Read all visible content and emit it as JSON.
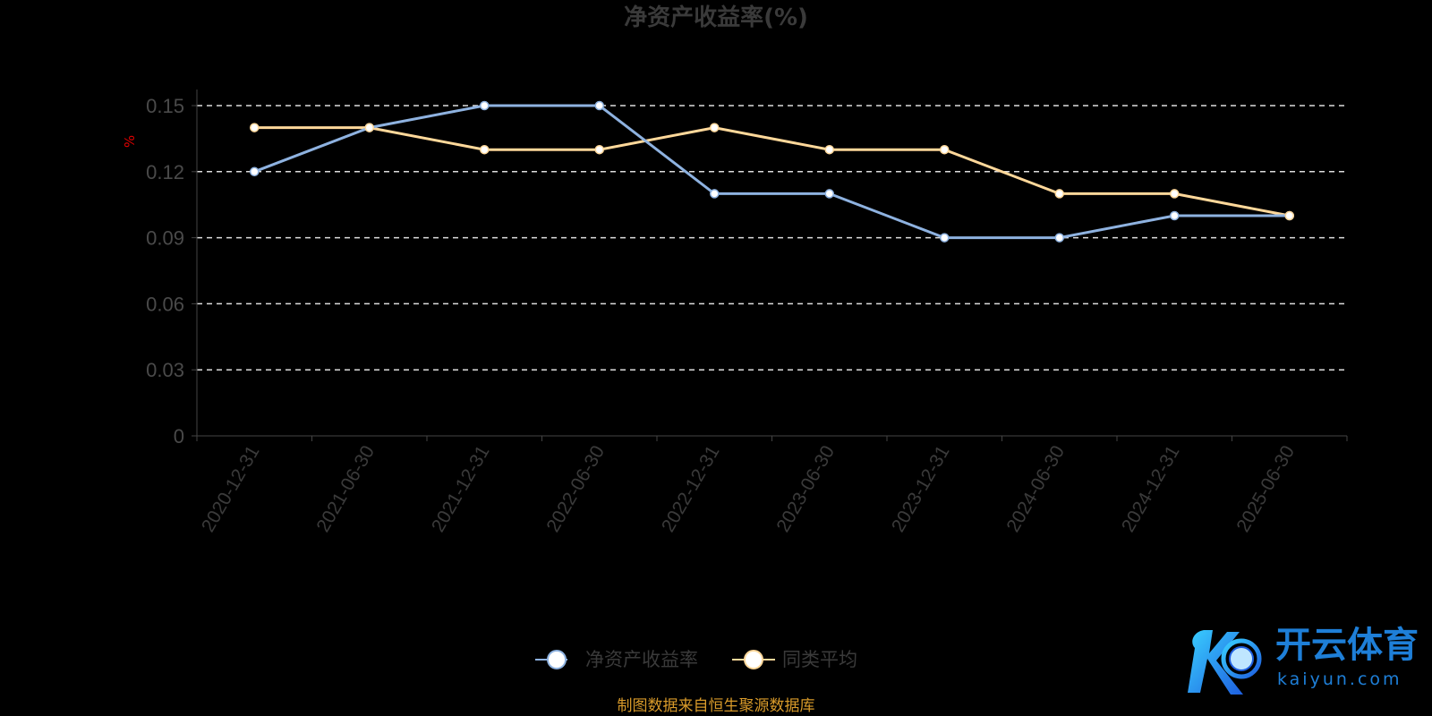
{
  "chart_data": {
    "type": "line",
    "title": "净资产收益率(%)",
    "ylabel": "%",
    "xlabel": "",
    "ylim": [
      0,
      0.15
    ],
    "yticks": [
      "0",
      "0.03",
      "0.06",
      "0.09",
      "0.12",
      "0.15"
    ],
    "ytick_values": [
      0,
      0.03,
      0.06,
      0.09,
      0.12,
      0.15
    ],
    "grid": true,
    "legend_position": "bottom",
    "categories": [
      "2020-12-31",
      "2021-06-30",
      "2021-12-31",
      "2022-06-30",
      "2022-12-31",
      "2023-06-30",
      "2023-12-31",
      "2024-06-30",
      "2024-12-31",
      "2025-06-30"
    ],
    "series": [
      {
        "name": "净资产收益率",
        "color": "#8eb2e0",
        "values": [
          0.12,
          0.14,
          0.15,
          0.15,
          0.11,
          0.11,
          0.09,
          0.09,
          0.1,
          0.1
        ]
      },
      {
        "name": "同类平均",
        "color": "#ffd89a",
        "values": [
          0.14,
          0.14,
          0.13,
          0.13,
          0.14,
          0.13,
          0.13,
          0.11,
          0.11,
          0.1
        ]
      }
    ]
  },
  "source": "制图数据来自恒生聚源数据库",
  "logo": {
    "name": "开云体育",
    "sub": "kaiyun.com"
  }
}
